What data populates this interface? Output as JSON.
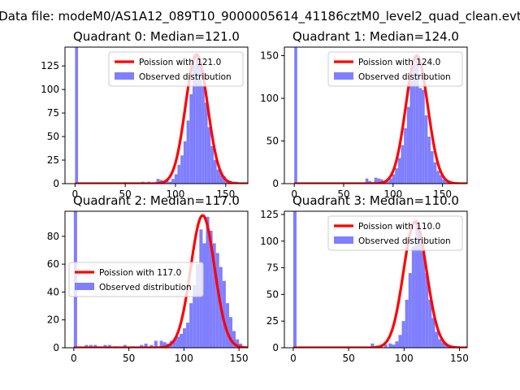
{
  "figure_title": "Data file: modeM0/AS1A12_089T10_9000005614_41186cztM0_level2_quad_clean.evt",
  "colors": {
    "histogram": "#7f7fff",
    "poisson": "#ff0000"
  },
  "chart_data": [
    {
      "type": "bar",
      "title": "Quadrant 0: Median=121.0",
      "legend_position": "upper right",
      "legend": {
        "line": "Poission with 121.0",
        "hist": "Observed distribution"
      },
      "xlim": [
        -10,
        172
      ],
      "ylim": [
        0,
        145
      ],
      "xticks": [
        0,
        50,
        100,
        150
      ],
      "yticks": [
        0,
        25,
        50,
        75,
        100,
        125
      ],
      "poisson_lambda": 121.0,
      "poisson_peak": 137,
      "bin_width": 3,
      "bins": [
        [
          0,
          145
        ],
        [
          66,
          2
        ],
        [
          72,
          2
        ],
        [
          75,
          1
        ],
        [
          81,
          5
        ],
        [
          84,
          4
        ],
        [
          87,
          3
        ],
        [
          90,
          4
        ],
        [
          93,
          2
        ],
        [
          96,
          5
        ],
        [
          99,
          10
        ],
        [
          102,
          20
        ],
        [
          105,
          30
        ],
        [
          108,
          45
        ],
        [
          111,
          67
        ],
        [
          114,
          95
        ],
        [
          117,
          125
        ],
        [
          120,
          137
        ],
        [
          123,
          132
        ],
        [
          126,
          104
        ],
        [
          129,
          86
        ],
        [
          132,
          60
        ],
        [
          135,
          40
        ],
        [
          138,
          25
        ],
        [
          141,
          15
        ],
        [
          144,
          11
        ],
        [
          147,
          8
        ],
        [
          150,
          4
        ],
        [
          153,
          3
        ],
        [
          156,
          2
        ],
        [
          159,
          2
        ],
        [
          162,
          1
        ]
      ]
    },
    {
      "type": "bar",
      "title": "Quadrant 1: Median=124.0",
      "legend_position": "upper right",
      "legend": {
        "line": "Poission with 124.0",
        "hist": "Observed distribution"
      },
      "xlim": [
        -10,
        175
      ],
      "ylim": [
        0,
        160
      ],
      "xticks": [
        0,
        50,
        100,
        150
      ],
      "yticks": [
        0,
        50,
        100,
        150
      ],
      "poisson_lambda": 124.0,
      "poisson_peak": 150,
      "bin_width": 3,
      "bins": [
        [
          0,
          160
        ],
        [
          72,
          6
        ],
        [
          75,
          3
        ],
        [
          78,
          2
        ],
        [
          81,
          7
        ],
        [
          84,
          6
        ],
        [
          87,
          5
        ],
        [
          90,
          3
        ],
        [
          93,
          3
        ],
        [
          96,
          6
        ],
        [
          99,
          11
        ],
        [
          102,
          18
        ],
        [
          105,
          30
        ],
        [
          108,
          45
        ],
        [
          111,
          65
        ],
        [
          114,
          90
        ],
        [
          117,
          120
        ],
        [
          120,
          140
        ],
        [
          123,
          148
        ],
        [
          126,
          112
        ],
        [
          129,
          110
        ],
        [
          132,
          80
        ],
        [
          135,
          55
        ],
        [
          138,
          38
        ],
        [
          141,
          25
        ],
        [
          144,
          15
        ],
        [
          147,
          10
        ],
        [
          150,
          5
        ],
        [
          153,
          4
        ],
        [
          156,
          3
        ],
        [
          159,
          1
        ],
        [
          162,
          1
        ]
      ]
    },
    {
      "type": "bar",
      "title": "Quadrant 2: Median=117.0",
      "legend_position": "center left",
      "legend": {
        "line": "Poission with 117.0",
        "hist": "Observed distribution"
      },
      "xlim": [
        -8,
        158
      ],
      "ylim": [
        0,
        98
      ],
      "xticks": [
        0,
        50,
        100,
        150
      ],
      "yticks": [
        0,
        20,
        40,
        60,
        80
      ],
      "poisson_lambda": 117.0,
      "poisson_peak": 95,
      "bin_width": 3,
      "bins": [
        [
          0,
          98
        ],
        [
          10,
          2
        ],
        [
          14,
          2
        ],
        [
          18,
          2
        ],
        [
          22,
          1
        ],
        [
          27,
          2
        ],
        [
          31,
          2
        ],
        [
          36,
          1
        ],
        [
          45,
          2
        ],
        [
          52,
          1
        ],
        [
          60,
          2
        ],
        [
          64,
          3
        ],
        [
          69,
          2
        ],
        [
          73,
          5
        ],
        [
          78,
          5
        ],
        [
          81,
          4
        ],
        [
          84,
          3
        ],
        [
          87,
          5
        ],
        [
          90,
          6
        ],
        [
          93,
          8
        ],
        [
          96,
          10
        ],
        [
          99,
          14
        ],
        [
          102,
          18
        ],
        [
          105,
          32
        ],
        [
          108,
          45
        ],
        [
          111,
          60
        ],
        [
          114,
          85
        ],
        [
          117,
          75
        ],
        [
          120,
          94
        ],
        [
          123,
          84
        ],
        [
          126,
          75
        ],
        [
          129,
          68
        ],
        [
          132,
          58
        ],
        [
          135,
          48
        ],
        [
          138,
          32
        ],
        [
          141,
          22
        ],
        [
          144,
          12
        ],
        [
          147,
          6
        ],
        [
          150,
          3
        ],
        [
          153,
          1
        ]
      ]
    },
    {
      "type": "bar",
      "title": "Quadrant 3: Median=110.0",
      "legend_position": "upper right",
      "legend": {
        "line": "Poission with 110.0",
        "hist": "Observed distribution"
      },
      "xlim": [
        -8,
        157
      ],
      "ylim": [
        0,
        128
      ],
      "xticks": [
        0,
        50,
        100,
        150
      ],
      "yticks": [
        0,
        25,
        50,
        75,
        100,
        125
      ],
      "poisson_lambda": 110.0,
      "poisson_peak": 118,
      "bin_width": 3,
      "bins": [
        [
          0,
          128
        ],
        [
          70,
          4
        ],
        [
          74,
          2
        ],
        [
          78,
          2
        ],
        [
          82,
          3
        ],
        [
          86,
          4
        ],
        [
          89,
          3
        ],
        [
          92,
          6
        ],
        [
          95,
          12
        ],
        [
          98,
          25
        ],
        [
          101,
          45
        ],
        [
          104,
          70
        ],
        [
          107,
          95
        ],
        [
          110,
          120
        ],
        [
          113,
          110
        ],
        [
          116,
          90
        ],
        [
          119,
          70
        ],
        [
          122,
          45
        ],
        [
          125,
          28
        ],
        [
          128,
          15
        ],
        [
          131,
          8
        ],
        [
          134,
          5
        ],
        [
          137,
          3
        ],
        [
          140,
          2
        ],
        [
          143,
          1
        ]
      ]
    }
  ]
}
